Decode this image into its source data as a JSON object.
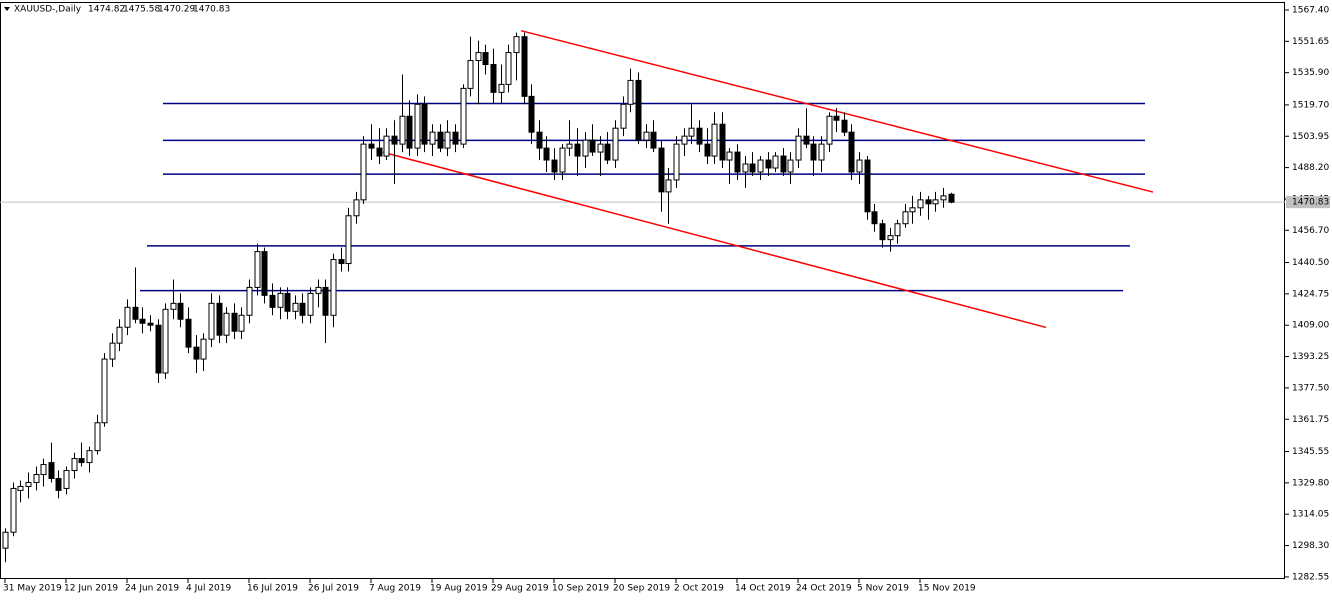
{
  "chart_data": {
    "type": "candlestick",
    "title": "XAUUSD-,Daily",
    "categories": [
      "31 May 2019",
      null,
      null,
      null,
      null,
      null,
      null,
      null,
      "12 Jun 2019",
      null,
      null,
      null,
      null,
      null,
      null,
      null,
      "24 Jun 2019",
      null,
      null,
      null,
      null,
      null,
      null,
      null,
      "4 Jul 2019",
      null,
      null,
      null,
      null,
      null,
      null,
      null,
      "16 Jul 2019",
      null,
      null,
      null,
      null,
      null,
      null,
      null,
      "26 Jul 2019",
      null,
      null,
      null,
      null,
      null,
      null,
      null,
      "7 Aug 2019",
      null,
      null,
      null,
      null,
      null,
      null,
      null,
      "19 Aug 2019",
      null,
      null,
      null,
      null,
      null,
      null,
      null,
      "29 Aug 2019",
      null,
      null,
      null,
      null,
      null,
      null,
      null,
      "10 Sep 2019",
      null,
      null,
      null,
      null,
      null,
      null,
      null,
      "20 Sep 2019",
      null,
      null,
      null,
      null,
      null,
      null,
      null,
      "2 Oct 2019",
      null,
      null,
      null,
      null,
      null,
      null,
      null,
      "14 Oct 2019",
      null,
      null,
      null,
      null,
      null,
      null,
      null,
      "24 Oct 2019",
      null,
      null,
      null,
      null,
      null,
      null,
      null,
      "5 Nov 2019",
      null,
      null,
      null,
      null,
      null,
      null,
      null,
      "15 Nov 2019",
      null,
      null,
      null,
      null
    ],
    "ohlc": [
      [
        1297,
        1307,
        1290,
        1305
      ],
      [
        1305,
        1330,
        1303,
        1327
      ],
      [
        1326,
        1331,
        1320,
        1328
      ],
      [
        1328,
        1335,
        1322,
        1330
      ],
      [
        1330,
        1338,
        1326,
        1334
      ],
      [
        1334,
        1342,
        1328,
        1339
      ],
      [
        1340,
        1350,
        1330,
        1332
      ],
      [
        1332,
        1336,
        1322,
        1326
      ],
      [
        1327,
        1338,
        1324,
        1336
      ],
      [
        1336,
        1345,
        1332,
        1342
      ],
      [
        1342,
        1350,
        1338,
        1340
      ],
      [
        1340,
        1348,
        1335,
        1346
      ],
      [
        1346,
        1364,
        1344,
        1360
      ],
      [
        1360,
        1395,
        1358,
        1392
      ],
      [
        1392,
        1405,
        1388,
        1400
      ],
      [
        1400,
        1412,
        1396,
        1408
      ],
      [
        1408,
        1422,
        1404,
        1418
      ],
      [
        1418,
        1438,
        1410,
        1412
      ],
      [
        1412,
        1418,
        1405,
        1410
      ],
      [
        1410,
        1414,
        1406,
        1409
      ],
      [
        1409,
        1412,
        1380,
        1385
      ],
      [
        1385,
        1420,
        1382,
        1417
      ],
      [
        1417,
        1432,
        1412,
        1420
      ],
      [
        1420,
        1425,
        1408,
        1412
      ],
      [
        1412,
        1418,
        1395,
        1398
      ],
      [
        1398,
        1404,
        1385,
        1392
      ],
      [
        1392,
        1405,
        1386,
        1402
      ],
      [
        1402,
        1425,
        1398,
        1420
      ],
      [
        1420,
        1424,
        1400,
        1404
      ],
      [
        1404,
        1418,
        1400,
        1415
      ],
      [
        1415,
        1420,
        1402,
        1406
      ],
      [
        1406,
        1418,
        1402,
        1414
      ],
      [
        1414,
        1432,
        1410,
        1428
      ],
      [
        1428,
        1450,
        1424,
        1446
      ],
      [
        1446,
        1448,
        1420,
        1424
      ],
      [
        1424,
        1430,
        1414,
        1418
      ],
      [
        1418,
        1428,
        1412,
        1425
      ],
      [
        1425,
        1428,
        1412,
        1416
      ],
      [
        1416,
        1424,
        1412,
        1420
      ],
      [
        1420,
        1425,
        1410,
        1414
      ],
      [
        1414,
        1428,
        1410,
        1425
      ],
      [
        1425,
        1432,
        1418,
        1428
      ],
      [
        1428,
        1432,
        1400,
        1414
      ],
      [
        1414,
        1445,
        1408,
        1442
      ],
      [
        1442,
        1448,
        1436,
        1440
      ],
      [
        1440,
        1468,
        1436,
        1464
      ],
      [
        1464,
        1476,
        1460,
        1472
      ],
      [
        1472,
        1504,
        1470,
        1500
      ],
      [
        1500,
        1510,
        1492,
        1498
      ],
      [
        1498,
        1508,
        1490,
        1494
      ],
      [
        1494,
        1508,
        1492,
        1504
      ],
      [
        1504,
        1512,
        1480,
        1500
      ],
      [
        1500,
        1535,
        1496,
        1514
      ],
      [
        1514,
        1522,
        1494,
        1498
      ],
      [
        1498,
        1525,
        1494,
        1520
      ],
      [
        1520,
        1524,
        1496,
        1500
      ],
      [
        1500,
        1510,
        1494,
        1506
      ],
      [
        1506,
        1510,
        1496,
        1498
      ],
      [
        1498,
        1512,
        1494,
        1506
      ],
      [
        1506,
        1510,
        1496,
        1500
      ],
      [
        1500,
        1530,
        1498,
        1528
      ],
      [
        1528,
        1554,
        1524,
        1542
      ],
      [
        1542,
        1552,
        1520,
        1546
      ],
      [
        1546,
        1550,
        1535,
        1540
      ],
      [
        1540,
        1548,
        1520,
        1526
      ],
      [
        1526,
        1540,
        1520,
        1530
      ],
      [
        1530,
        1550,
        1526,
        1546
      ],
      [
        1546,
        1556,
        1532,
        1554
      ],
      [
        1554,
        1556,
        1520,
        1524
      ],
      [
        1524,
        1530,
        1500,
        1506
      ],
      [
        1506,
        1512,
        1492,
        1498
      ],
      [
        1498,
        1504,
        1486,
        1492
      ],
      [
        1492,
        1498,
        1482,
        1486
      ],
      [
        1486,
        1500,
        1482,
        1498
      ],
      [
        1498,
        1512,
        1494,
        1500
      ],
      [
        1500,
        1508,
        1484,
        1494
      ],
      [
        1494,
        1506,
        1488,
        1502
      ],
      [
        1502,
        1510,
        1494,
        1496
      ],
      [
        1496,
        1504,
        1484,
        1500
      ],
      [
        1500,
        1506,
        1490,
        1492
      ],
      [
        1492,
        1512,
        1488,
        1508
      ],
      [
        1508,
        1524,
        1504,
        1520
      ],
      [
        1520,
        1538,
        1516,
        1532
      ],
      [
        1532,
        1536,
        1500,
        1502
      ],
      [
        1502,
        1510,
        1498,
        1506
      ],
      [
        1506,
        1512,
        1496,
        1498
      ],
      [
        1498,
        1502,
        1466,
        1476
      ],
      [
        1476,
        1488,
        1460,
        1482
      ],
      [
        1482,
        1504,
        1478,
        1500
      ],
      [
        1500,
        1508,
        1494,
        1504
      ],
      [
        1504,
        1520,
        1500,
        1508
      ],
      [
        1508,
        1512,
        1496,
        1500
      ],
      [
        1500,
        1508,
        1490,
        1494
      ],
      [
        1494,
        1516,
        1490,
        1510
      ],
      [
        1510,
        1516,
        1488,
        1492
      ],
      [
        1492,
        1498,
        1480,
        1496
      ],
      [
        1496,
        1500,
        1482,
        1486
      ],
      [
        1486,
        1494,
        1478,
        1490
      ],
      [
        1490,
        1496,
        1484,
        1486
      ],
      [
        1486,
        1494,
        1482,
        1492
      ],
      [
        1492,
        1496,
        1484,
        1488
      ],
      [
        1488,
        1496,
        1486,
        1494
      ],
      [
        1494,
        1498,
        1484,
        1486
      ],
      [
        1486,
        1496,
        1480,
        1492
      ],
      [
        1492,
        1508,
        1488,
        1504
      ],
      [
        1504,
        1518,
        1498,
        1500
      ],
      [
        1500,
        1504,
        1484,
        1492
      ],
      [
        1492,
        1504,
        1486,
        1500
      ],
      [
        1500,
        1516,
        1496,
        1514
      ],
      [
        1514,
        1518,
        1506,
        1512
      ],
      [
        1512,
        1516,
        1504,
        1506
      ],
      [
        1506,
        1510,
        1482,
        1486
      ],
      [
        1486,
        1496,
        1480,
        1492
      ],
      [
        1492,
        1494,
        1462,
        1466
      ],
      [
        1466,
        1470,
        1456,
        1460
      ],
      [
        1460,
        1462,
        1448,
        1452
      ],
      [
        1452,
        1458,
        1446,
        1454
      ],
      [
        1454,
        1462,
        1450,
        1460
      ],
      [
        1460,
        1470,
        1458,
        1466
      ],
      [
        1466,
        1474,
        1460,
        1468
      ],
      [
        1468,
        1476,
        1464,
        1472
      ],
      [
        1472,
        1474,
        1462,
        1470
      ],
      [
        1470,
        1476,
        1466,
        1472
      ],
      [
        1472,
        1478,
        1468,
        1474
      ],
      [
        1474.82,
        1475.58,
        1470.29,
        1470.83
      ]
    ],
    "ylim": [
      1281.5,
      1570.9
    ],
    "yticks": [
      {
        "value": 1567.4,
        "label": "1567.40"
      },
      {
        "value": 1551.65,
        "label": "1551.65"
      },
      {
        "value": 1535.9,
        "label": "1535.90"
      },
      {
        "value": 1519.7,
        "label": "1519.70"
      },
      {
        "value": 1503.95,
        "label": "1503.95"
      },
      {
        "value": 1488.2,
        "label": "1488.20"
      },
      {
        "value": 1472.45,
        "label": "1472.45"
      },
      {
        "value": 1456.7,
        "label": "1456.70"
      },
      {
        "value": 1440.5,
        "label": "1440.50"
      },
      {
        "value": 1424.75,
        "label": "1424.75"
      },
      {
        "value": 1409,
        "label": "1409.00"
      },
      {
        "value": 1393.25,
        "label": "1393.25"
      },
      {
        "value": 1377.5,
        "label": "1377.50"
      },
      {
        "value": 1361.75,
        "label": "1361.75"
      },
      {
        "value": 1345.55,
        "label": "1345.55"
      },
      {
        "value": 1329.8,
        "label": "1329.80"
      },
      {
        "value": 1314.05,
        "label": "1314.05"
      },
      {
        "value": 1298.3,
        "label": "1298.30"
      },
      {
        "value": 1282.55,
        "label": "1282.55"
      }
    ],
    "hlines": [
      1520.4,
      1501.9,
      1484.9,
      1448.9,
      1426.4
    ],
    "hline_color": "#000080",
    "trendlines": [
      {
        "from": 1557,
        "to": 1475.9
      },
      {
        "from": 1495.9,
        "to": 1407.9
      }
    ],
    "trendline_color": "#ff0000"
  }
}
